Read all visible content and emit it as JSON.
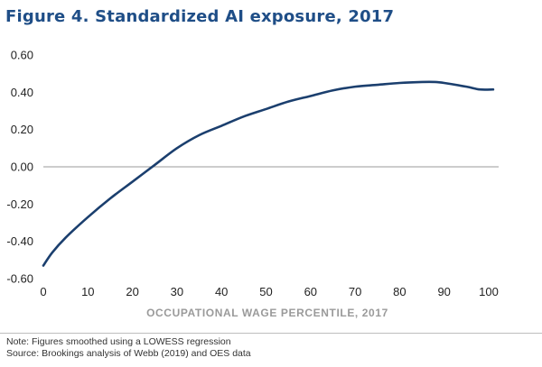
{
  "figure": {
    "title": "Figure 4. Standardized AI exposure, 2017",
    "note": "Note: Figures smoothed using a LOWESS regression",
    "source": "Source: Brookings analysis of Webb (2019) and OES data"
  },
  "colors": {
    "title": "#1f4e87",
    "line": "#1b3f6e",
    "zero_line": "#9a9a9a"
  },
  "chart_data": {
    "type": "line",
    "title": "Figure 4. Standardized AI exposure, 2017",
    "xlabel": "OCCUPATIONAL WAGE PERCENTILE, 2017",
    "ylabel": "",
    "xlim": [
      0,
      100
    ],
    "ylim": [
      -0.6,
      0.6
    ],
    "x_ticks": [
      "0",
      "10",
      "20",
      "30",
      "40",
      "50",
      "60",
      "70",
      "80",
      "90",
      "100"
    ],
    "y_ticks": [
      "0.60",
      "0.40",
      "0.20",
      "0.00",
      "-0.20",
      "-0.40",
      "-0.60"
    ],
    "grid": false,
    "zero_line": true,
    "series": [
      {
        "x": [
          0,
          2,
          5,
          10,
          15,
          20,
          25,
          30,
          35,
          40,
          45,
          50,
          55,
          60,
          65,
          70,
          75,
          80,
          85,
          88,
          90,
          95,
          98,
          101
        ],
        "y": [
          -0.53,
          -0.46,
          -0.38,
          -0.27,
          -0.17,
          -0.08,
          0.01,
          0.1,
          0.17,
          0.22,
          0.27,
          0.31,
          0.35,
          0.38,
          0.41,
          0.43,
          0.44,
          0.45,
          0.455,
          0.455,
          0.45,
          0.43,
          0.415,
          0.415
        ]
      }
    ]
  }
}
